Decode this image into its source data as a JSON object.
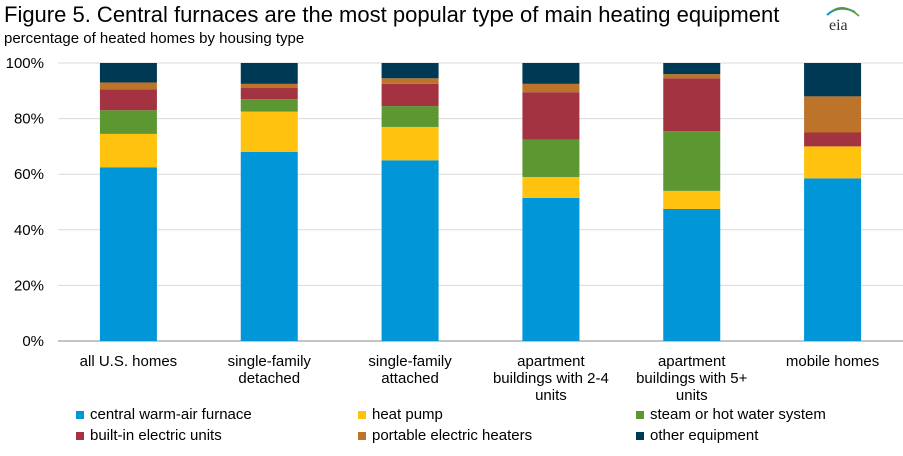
{
  "title": "Figure 5. Central furnaces are the most popular type of main heating equipment",
  "subtitle": "percentage of heated homes by housing type",
  "logo_text": "eia",
  "chart_data": {
    "type": "bar",
    "stacked": true,
    "title": "Figure 5. Central furnaces are the most popular type of main heating equipment",
    "ylabel": "",
    "ylim": [
      0,
      100
    ],
    "yticks": [
      "0%",
      "20%",
      "40%",
      "60%",
      "80%",
      "100%"
    ],
    "categories": [
      [
        "all U.S. homes"
      ],
      [
        "single-family",
        "detached"
      ],
      [
        "single-family",
        "attached"
      ],
      [
        "apartment",
        "buildings with 2-4",
        "units"
      ],
      [
        "apartment",
        "buildings with 5+",
        "units"
      ],
      [
        "mobile homes"
      ]
    ],
    "series": [
      {
        "name": "central warm-air furnace",
        "color": "#0096d7",
        "values": [
          62.5,
          68,
          65,
          51.5,
          47.5,
          58.5
        ]
      },
      {
        "name": "heat pump",
        "color": "#ffc20e",
        "values": [
          12,
          14.5,
          12,
          7.5,
          6.5,
          11.5
        ]
      },
      {
        "name": "steam or hot water system",
        "color": "#5d9732",
        "values": [
          8.5,
          4.5,
          7.5,
          13.5,
          21.5,
          0
        ]
      },
      {
        "name": "built-in electric units",
        "color": "#a33340",
        "values": [
          7.5,
          4,
          8,
          17,
          19,
          5
        ]
      },
      {
        "name": "portable electric heaters",
        "color": "#bd732a",
        "values": [
          2.5,
          1.5,
          2,
          3,
          1.5,
          13
        ]
      },
      {
        "name": "other equipment",
        "color": "#003953",
        "values": [
          7,
          7.5,
          5.5,
          7.5,
          4,
          12
        ]
      }
    ],
    "grid": true,
    "legend_position": "bottom"
  }
}
